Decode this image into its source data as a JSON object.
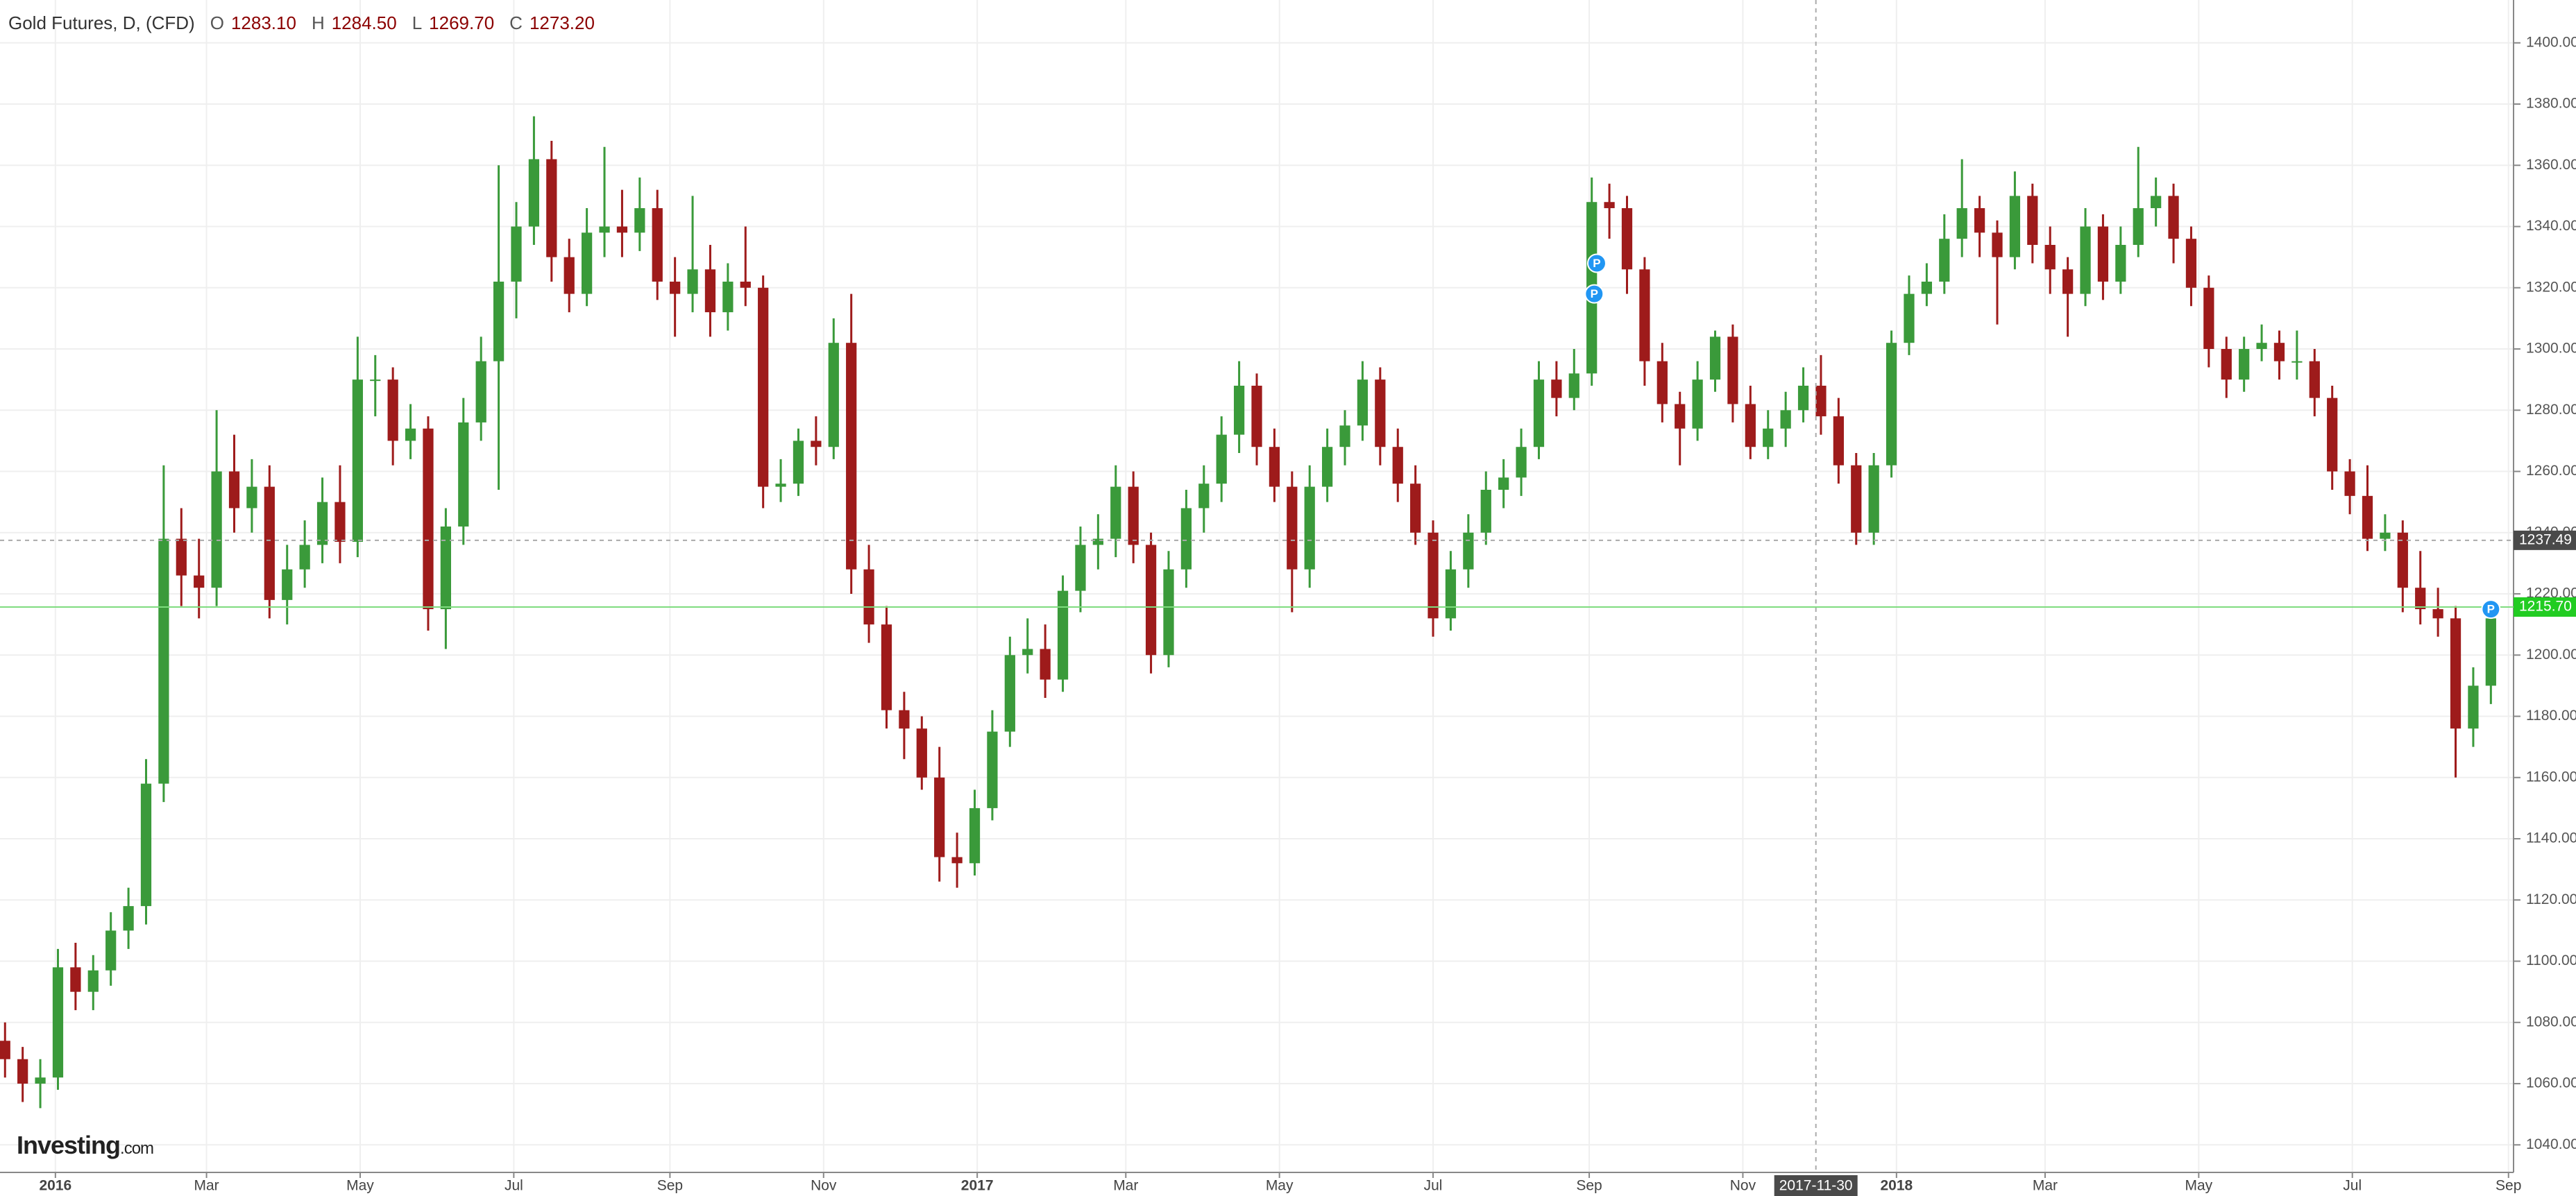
{
  "header": {
    "title": "Gold Futures, D, (CFD)",
    "ohlc_legend": [
      {
        "key": "O",
        "value": "1283.10"
      },
      {
        "key": "H",
        "value": "1284.50"
      },
      {
        "key": "L",
        "value": "1269.70"
      },
      {
        "key": "C",
        "value": "1273.20"
      }
    ]
  },
  "logo": {
    "name": "Investing",
    "suffix": ".com"
  },
  "chart_data": {
    "type": "candlestick",
    "up_color": "#3a9a3a",
    "down_color": "#9e1b1b",
    "grid": true,
    "xlim": [
      -22,
      976
    ],
    "ylim": [
      1031,
      1414
    ],
    "xticks": [
      {
        "value": 0,
        "label": "2016"
      },
      {
        "value": 60,
        "label": "Mar"
      },
      {
        "value": 121,
        "label": "May"
      },
      {
        "value": 182,
        "label": "Jul"
      },
      {
        "value": 244,
        "label": "Sep"
      },
      {
        "value": 305,
        "label": "Nov"
      },
      {
        "value": 366,
        "label": "2017"
      },
      {
        "value": 425,
        "label": "Mar"
      },
      {
        "value": 486,
        "label": "May"
      },
      {
        "value": 547,
        "label": "Jul"
      },
      {
        "value": 609,
        "label": "Sep"
      },
      {
        "value": 670,
        "label": "Nov"
      },
      {
        "value": 731,
        "label": "2018"
      },
      {
        "value": 790,
        "label": "Mar"
      },
      {
        "value": 851,
        "label": "May"
      },
      {
        "value": 912,
        "label": "Jul"
      },
      {
        "value": 974,
        "label": "Sep"
      }
    ],
    "yticks": [
      {
        "value": 1040,
        "label": "1040.00"
      },
      {
        "value": 1060,
        "label": "1060.00"
      },
      {
        "value": 1080,
        "label": "1080.00"
      },
      {
        "value": 1100,
        "label": "1100.00"
      },
      {
        "value": 1120,
        "label": "1120.00"
      },
      {
        "value": 1140,
        "label": "1140.00"
      },
      {
        "value": 1160,
        "label": "1160.00"
      },
      {
        "value": 1180,
        "label": "1180.00"
      },
      {
        "value": 1200,
        "label": "1200.00"
      },
      {
        "value": 1220,
        "label": "1220.00"
      },
      {
        "value": 1240,
        "label": "1240.00"
      },
      {
        "value": 1260,
        "label": "1260.00"
      },
      {
        "value": 1280,
        "label": "1280.00"
      },
      {
        "value": 1300,
        "label": "1300.00"
      },
      {
        "value": 1320,
        "label": "1320.00"
      },
      {
        "value": 1340,
        "label": "1340.00"
      },
      {
        "value": 1360,
        "label": "1360.00"
      },
      {
        "value": 1380,
        "label": "1380.00"
      },
      {
        "value": 1400,
        "label": "1400.00"
      }
    ],
    "crosshair": {
      "x": {
        "value": 699,
        "label": "2017-11-30"
      },
      "y": 1237.49
    },
    "last_price": {
      "value": 1215.7,
      "label": "1215.70"
    },
    "markers": [
      {
        "x": 612,
        "y": 1328,
        "label": "P"
      },
      {
        "x": 611,
        "y": 1318,
        "label": "P"
      },
      {
        "x": 967,
        "y": 1215,
        "label": "P"
      }
    ],
    "x": [
      -20,
      -13,
      -6,
      1,
      8,
      15,
      22,
      29,
      36,
      43,
      50,
      57,
      64,
      71,
      78,
      85,
      92,
      99,
      106,
      113,
      120,
      127,
      134,
      141,
      148,
      155,
      162,
      169,
      176,
      183,
      190,
      197,
      204,
      211,
      218,
      225,
      232,
      239,
      246,
      253,
      260,
      267,
      274,
      281,
      288,
      295,
      302,
      309,
      316,
      323,
      330,
      337,
      344,
      351,
      358,
      365,
      372,
      379,
      386,
      393,
      400,
      407,
      414,
      421,
      428,
      435,
      442,
      449,
      456,
      463,
      470,
      477,
      484,
      491,
      498,
      505,
      512,
      519,
      526,
      533,
      540,
      547,
      554,
      561,
      568,
      575,
      582,
      589,
      596,
      603,
      610,
      617,
      624,
      631,
      638,
      645,
      652,
      659,
      666,
      673,
      680,
      687,
      694,
      701,
      708,
      715,
      722,
      729,
      736,
      743,
      750,
      757,
      764,
      771,
      778,
      785,
      792,
      799,
      806,
      813,
      820,
      827,
      834,
      841,
      848,
      855,
      862,
      869,
      876,
      883,
      890,
      897,
      904,
      911,
      918,
      925,
      932,
      939,
      946,
      953,
      960,
      967
    ],
    "ohlc": [
      [
        1074,
        1080,
        1062,
        1068
      ],
      [
        1068,
        1072,
        1054,
        1060
      ],
      [
        1060,
        1068,
        1052,
        1062
      ],
      [
        1062,
        1104,
        1058,
        1098
      ],
      [
        1098,
        1106,
        1084,
        1090
      ],
      [
        1090,
        1102,
        1084,
        1097
      ],
      [
        1097,
        1116,
        1092,
        1110
      ],
      [
        1110,
        1124,
        1104,
        1118
      ],
      [
        1118,
        1166,
        1112,
        1158
      ],
      [
        1158,
        1262,
        1152,
        1238
      ],
      [
        1238,
        1248,
        1216,
        1226
      ],
      [
        1226,
        1238,
        1212,
        1222
      ],
      [
        1222,
        1280,
        1216,
        1260
      ],
      [
        1260,
        1272,
        1240,
        1248
      ],
      [
        1248,
        1264,
        1240,
        1255
      ],
      [
        1255,
        1262,
        1212,
        1218
      ],
      [
        1218,
        1236,
        1210,
        1228
      ],
      [
        1228,
        1244,
        1222,
        1236
      ],
      [
        1236,
        1258,
        1230,
        1250
      ],
      [
        1250,
        1262,
        1230,
        1237
      ],
      [
        1237,
        1304,
        1232,
        1290
      ],
      [
        1290,
        1298,
        1278,
        1290
      ],
      [
        1290,
        1294,
        1262,
        1270
      ],
      [
        1270,
        1282,
        1264,
        1274
      ],
      [
        1274,
        1278,
        1208,
        1215
      ],
      [
        1215,
        1248,
        1202,
        1242
      ],
      [
        1242,
        1284,
        1236,
        1276
      ],
      [
        1276,
        1304,
        1270,
        1296
      ],
      [
        1296,
        1360,
        1254,
        1322
      ],
      [
        1322,
        1348,
        1310,
        1340
      ],
      [
        1340,
        1376,
        1334,
        1362
      ],
      [
        1362,
        1368,
        1322,
        1330
      ],
      [
        1330,
        1336,
        1312,
        1318
      ],
      [
        1318,
        1346,
        1314,
        1338
      ],
      [
        1338,
        1366,
        1330,
        1340
      ],
      [
        1340,
        1352,
        1330,
        1338
      ],
      [
        1338,
        1356,
        1332,
        1346
      ],
      [
        1346,
        1352,
        1316,
        1322
      ],
      [
        1322,
        1330,
        1304,
        1318
      ],
      [
        1318,
        1350,
        1312,
        1326
      ],
      [
        1326,
        1334,
        1304,
        1312
      ],
      [
        1312,
        1328,
        1306,
        1322
      ],
      [
        1322,
        1340,
        1314,
        1320
      ],
      [
        1320,
        1324,
        1248,
        1255
      ],
      [
        1255,
        1264,
        1250,
        1256
      ],
      [
        1256,
        1274,
        1252,
        1270
      ],
      [
        1270,
        1278,
        1262,
        1268
      ],
      [
        1268,
        1310,
        1264,
        1302
      ],
      [
        1302,
        1318,
        1220,
        1228
      ],
      [
        1228,
        1236,
        1204,
        1210
      ],
      [
        1210,
        1216,
        1176,
        1182
      ],
      [
        1182,
        1188,
        1166,
        1176
      ],
      [
        1176,
        1180,
        1156,
        1160
      ],
      [
        1160,
        1170,
        1126,
        1134
      ],
      [
        1134,
        1142,
        1124,
        1132
      ],
      [
        1132,
        1156,
        1128,
        1150
      ],
      [
        1150,
        1182,
        1146,
        1175
      ],
      [
        1175,
        1206,
        1170,
        1200
      ],
      [
        1200,
        1212,
        1194,
        1202
      ],
      [
        1202,
        1210,
        1186,
        1192
      ],
      [
        1192,
        1226,
        1188,
        1221
      ],
      [
        1221,
        1242,
        1214,
        1236
      ],
      [
        1236,
        1246,
        1228,
        1238
      ],
      [
        1238,
        1262,
        1232,
        1255
      ],
      [
        1255,
        1260,
        1230,
        1236
      ],
      [
        1236,
        1240,
        1194,
        1200
      ],
      [
        1200,
        1234,
        1196,
        1228
      ],
      [
        1228,
        1254,
        1222,
        1248
      ],
      [
        1248,
        1262,
        1240,
        1256
      ],
      [
        1256,
        1278,
        1250,
        1272
      ],
      [
        1272,
        1296,
        1266,
        1288
      ],
      [
        1288,
        1292,
        1262,
        1268
      ],
      [
        1268,
        1274,
        1250,
        1255
      ],
      [
        1255,
        1260,
        1214,
        1228
      ],
      [
        1228,
        1262,
        1222,
        1255
      ],
      [
        1255,
        1274,
        1250,
        1268
      ],
      [
        1268,
        1280,
        1262,
        1275
      ],
      [
        1275,
        1296,
        1270,
        1290
      ],
      [
        1290,
        1294,
        1262,
        1268
      ],
      [
        1268,
        1274,
        1250,
        1256
      ],
      [
        1256,
        1262,
        1236,
        1240
      ],
      [
        1240,
        1244,
        1206,
        1212
      ],
      [
        1212,
        1234,
        1208,
        1228
      ],
      [
        1228,
        1246,
        1222,
        1240
      ],
      [
        1240,
        1260,
        1236,
        1254
      ],
      [
        1254,
        1264,
        1248,
        1258
      ],
      [
        1258,
        1274,
        1252,
        1268
      ],
      [
        1268,
        1296,
        1264,
        1290
      ],
      [
        1290,
        1296,
        1278,
        1284
      ],
      [
        1284,
        1300,
        1280,
        1292
      ],
      [
        1292,
        1356,
        1288,
        1348
      ],
      [
        1348,
        1354,
        1336,
        1346
      ],
      [
        1346,
        1350,
        1318,
        1326
      ],
      [
        1326,
        1330,
        1288,
        1296
      ],
      [
        1296,
        1302,
        1276,
        1282
      ],
      [
        1282,
        1286,
        1262,
        1274
      ],
      [
        1274,
        1296,
        1270,
        1290
      ],
      [
        1290,
        1306,
        1286,
        1304
      ],
      [
        1304,
        1308,
        1276,
        1282
      ],
      [
        1282,
        1288,
        1264,
        1268
      ],
      [
        1268,
        1280,
        1264,
        1274
      ],
      [
        1274,
        1286,
        1268,
        1280
      ],
      [
        1280,
        1294,
        1276,
        1288
      ],
      [
        1288,
        1298,
        1272,
        1278
      ],
      [
        1278,
        1284,
        1256,
        1262
      ],
      [
        1262,
        1266,
        1236,
        1240
      ],
      [
        1240,
        1266,
        1236,
        1262
      ],
      [
        1262,
        1306,
        1258,
        1302
      ],
      [
        1302,
        1324,
        1298,
        1318
      ],
      [
        1318,
        1328,
        1314,
        1322
      ],
      [
        1322,
        1344,
        1318,
        1336
      ],
      [
        1336,
        1362,
        1330,
        1346
      ],
      [
        1346,
        1350,
        1330,
        1338
      ],
      [
        1338,
        1342,
        1308,
        1330
      ],
      [
        1330,
        1358,
        1326,
        1350
      ],
      [
        1350,
        1354,
        1328,
        1334
      ],
      [
        1334,
        1340,
        1318,
        1326
      ],
      [
        1326,
        1330,
        1304,
        1318
      ],
      [
        1318,
        1346,
        1314,
        1340
      ],
      [
        1340,
        1344,
        1316,
        1322
      ],
      [
        1322,
        1340,
        1318,
        1334
      ],
      [
        1334,
        1366,
        1330,
        1346
      ],
      [
        1346,
        1356,
        1340,
        1350
      ],
      [
        1350,
        1354,
        1328,
        1336
      ],
      [
        1336,
        1340,
        1314,
        1320
      ],
      [
        1320,
        1324,
        1294,
        1300
      ],
      [
        1300,
        1304,
        1284,
        1290
      ],
      [
        1290,
        1304,
        1286,
        1300
      ],
      [
        1300,
        1308,
        1296,
        1302
      ],
      [
        1302,
        1306,
        1290,
        1296
      ],
      [
        1296,
        1306,
        1290,
        1296
      ],
      [
        1296,
        1300,
        1278,
        1284
      ],
      [
        1284,
        1288,
        1254,
        1260
      ],
      [
        1260,
        1264,
        1246,
        1252
      ],
      [
        1252,
        1262,
        1234,
        1238
      ],
      [
        1238,
        1246,
        1234,
        1240
      ],
      [
        1240,
        1244,
        1214,
        1222
      ],
      [
        1222,
        1234,
        1210,
        1215
      ],
      [
        1215,
        1222,
        1206,
        1212
      ],
      [
        1212,
        1216,
        1160,
        1176
      ],
      [
        1176,
        1196,
        1170,
        1190
      ],
      [
        1190,
        1216,
        1184,
        1212
      ]
    ]
  }
}
